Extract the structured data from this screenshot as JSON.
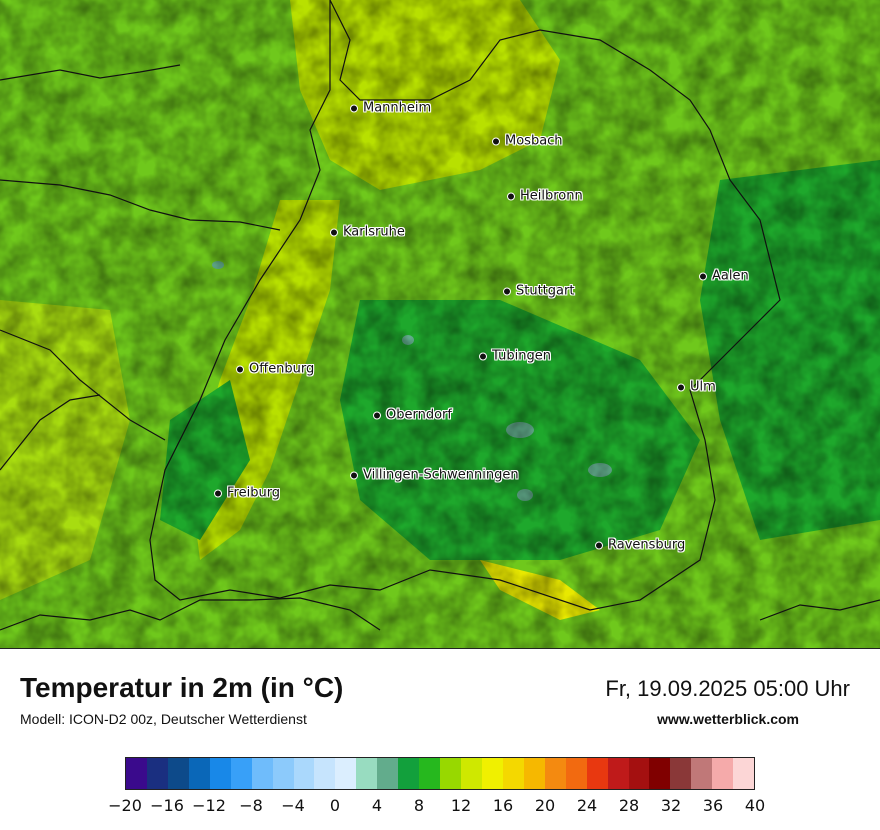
{
  "map": {
    "cities": [
      {
        "name": "Mannheim"
      },
      {
        "name": "Mosbach"
      },
      {
        "name": "Heilbronn"
      },
      {
        "name": "Karlsruhe"
      },
      {
        "name": "Aalen"
      },
      {
        "name": "Stuttgart"
      },
      {
        "name": "Tübingen"
      },
      {
        "name": "Offenburg"
      },
      {
        "name": "Ulm"
      },
      {
        "name": "Oberndorf"
      },
      {
        "name": "Villingen-Schwenningen"
      },
      {
        "name": "Freiburg"
      },
      {
        "name": "Ravensburg"
      }
    ]
  },
  "footer": {
    "title": "Temperatur in 2m (in °C)",
    "model": "Modell: ICON-D2 00z, Deutscher Wetterdienst",
    "datetime": "Fr, 19.09.2025 05:00 Uhr",
    "website": "www.wetterblick.com"
  },
  "legend": {
    "min": -20,
    "max": 40,
    "step": 2,
    "tick_labels": [
      "−20",
      "−16",
      "−12",
      "−8",
      "−4",
      "0",
      "4",
      "8",
      "12",
      "16",
      "20",
      "24",
      "28",
      "32",
      "36",
      "40"
    ],
    "colors": [
      "#3a0a8c",
      "#1a2f80",
      "#0d4a8a",
      "#0a67b8",
      "#1888e8",
      "#38a0f8",
      "#6fbcfb",
      "#8ccafb",
      "#aad8fc",
      "#c6e4fd",
      "#dbeefe",
      "#98dcc0",
      "#62ac8c",
      "#12a03c",
      "#26b81e",
      "#98d800",
      "#cfe800",
      "#f0f000",
      "#f4d800",
      "#f6b800",
      "#f48a10",
      "#f26a10",
      "#e83810",
      "#bf1a1a",
      "#a41010",
      "#800000",
      "#8a3838",
      "#c07878",
      "#f5aaaa",
      "#fcd6d6"
    ]
  }
}
